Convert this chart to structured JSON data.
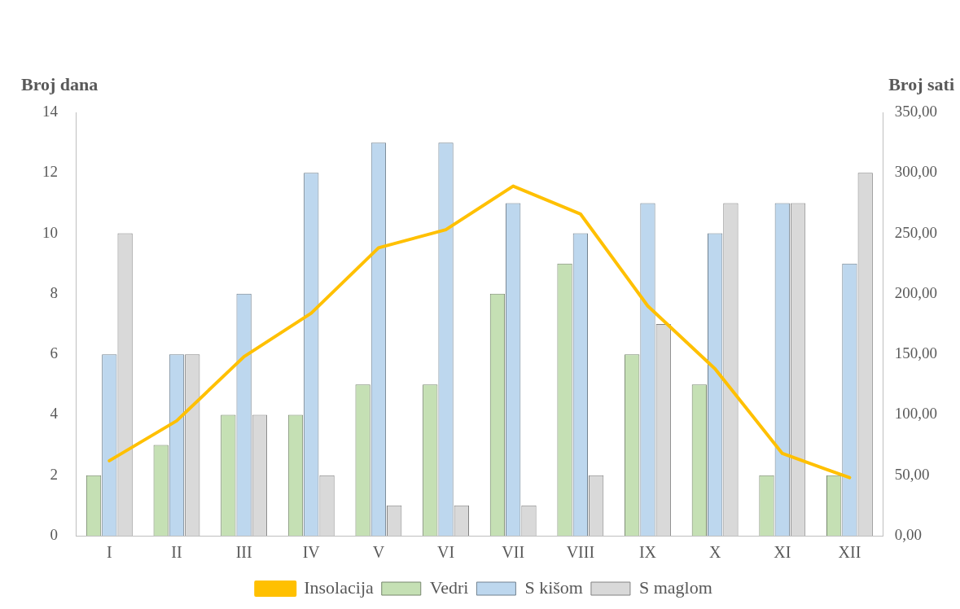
{
  "chart_data": {
    "type": "bar",
    "ylabel": "Broj dana",
    "y2label": "Broj sati",
    "categories": [
      "I",
      "II",
      "III",
      "IV",
      "V",
      "VI",
      "VII",
      "VIII",
      "IX",
      "X",
      "XI",
      "XII"
    ],
    "series": [
      {
        "name": "Vedri",
        "color": "#c5e0b4",
        "values": [
          2,
          3,
          4,
          4,
          5,
          5,
          8,
          9,
          6,
          5,
          2,
          2
        ]
      },
      {
        "name": "S kišom",
        "color": "#bdd7ee",
        "values": [
          6,
          6,
          8,
          12,
          13,
          13,
          11,
          10,
          11,
          10,
          11,
          9
        ]
      },
      {
        "name": "S maglom",
        "color": "#d9d9d9",
        "values": [
          10,
          6,
          4,
          2,
          1,
          1,
          1,
          2,
          7,
          11,
          11,
          12
        ]
      },
      {
        "name": "Insolacija",
        "type": "line",
        "axis": "y2",
        "color": "#ffc000",
        "values": [
          62,
          95,
          148,
          184,
          238,
          253,
          289,
          266,
          190,
          138,
          68,
          48
        ]
      }
    ],
    "ylim": [
      0,
      14
    ],
    "yticks": [
      0,
      2,
      4,
      6,
      8,
      10,
      12,
      14
    ],
    "y2lim": [
      0,
      350
    ],
    "y2ticks": [
      {
        "value": 0,
        "label": "0,00"
      },
      {
        "value": 50,
        "label": "50,00"
      },
      {
        "value": 100,
        "label": "100,00"
      },
      {
        "value": 150,
        "label": "150,00"
      },
      {
        "value": 200,
        "label": "200,00"
      },
      {
        "value": 250,
        "label": "250,00"
      },
      {
        "value": 300,
        "label": "300,00"
      },
      {
        "value": 350,
        "label": "350,00"
      }
    ],
    "grid": false,
    "legend": "bottom",
    "marker": "none",
    "line_style": "solid"
  }
}
